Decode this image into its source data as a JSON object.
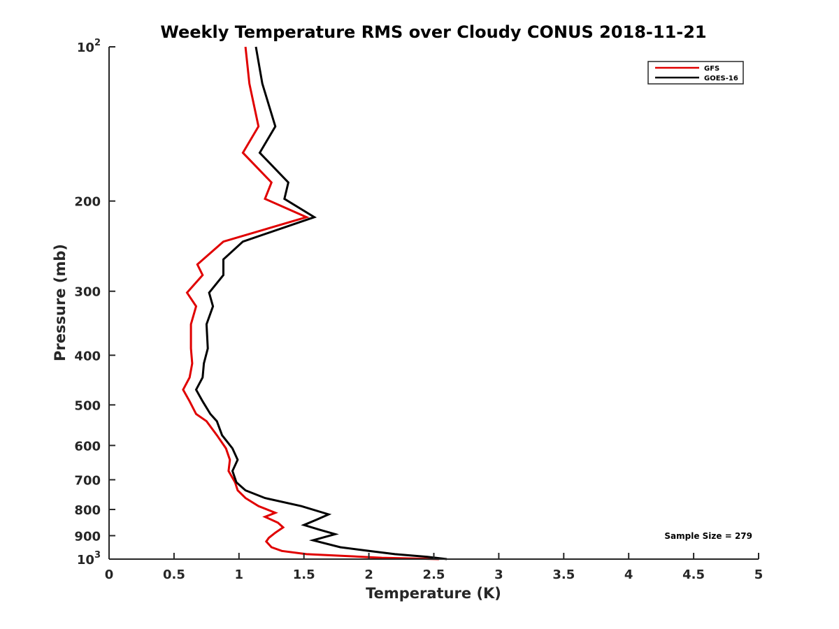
{
  "chart_data": {
    "type": "line",
    "title": "Weekly Temperature RMS over Cloudy CONUS 2018-11-21",
    "xlabel": "Temperature (K)",
    "ylabel": "Pressure (mb)",
    "xlim": [
      0,
      5
    ],
    "ylim": [
      1000,
      100
    ],
    "y_scale": "log",
    "y_reversed": true,
    "x_ticks": [
      "0",
      "0.5",
      "1",
      "1.5",
      "2",
      "2.5",
      "3",
      "3.5",
      "4",
      "4.5",
      "5"
    ],
    "y_ticks": [
      {
        "value": 100,
        "base": "10",
        "exp": "2"
      },
      {
        "value": 200,
        "label": "200"
      },
      {
        "value": 300,
        "label": "300"
      },
      {
        "value": 400,
        "label": "400"
      },
      {
        "value": 500,
        "label": "500"
      },
      {
        "value": 600,
        "label": "600"
      },
      {
        "value": 700,
        "label": "700"
      },
      {
        "value": 800,
        "label": "800"
      },
      {
        "value": 900,
        "label": "900"
      },
      {
        "value": 1000,
        "base": "10",
        "exp": "3"
      }
    ],
    "grid": false,
    "legend_position": "top-right",
    "annotation": "Sample Size = 279",
    "series": [
      {
        "name": "GFS",
        "color": "#e00000",
        "points": [
          [
            1.05,
            100
          ],
          [
            1.08,
            118
          ],
          [
            1.15,
            143
          ],
          [
            1.03,
            161
          ],
          [
            1.25,
            184
          ],
          [
            1.2,
            198
          ],
          [
            1.52,
            215
          ],
          [
            0.88,
            240
          ],
          [
            0.68,
            266
          ],
          [
            0.72,
            279
          ],
          [
            0.6,
            302
          ],
          [
            0.67,
            321
          ],
          [
            0.63,
            348
          ],
          [
            0.63,
            388
          ],
          [
            0.64,
            415
          ],
          [
            0.62,
            442
          ],
          [
            0.57,
            467
          ],
          [
            0.62,
            492
          ],
          [
            0.67,
            521
          ],
          [
            0.75,
            538
          ],
          [
            0.83,
            573
          ],
          [
            0.9,
            608
          ],
          [
            0.93,
            640
          ],
          [
            0.92,
            673
          ],
          [
            0.97,
            708
          ],
          [
            0.99,
            734
          ],
          [
            1.05,
            760
          ],
          [
            1.15,
            788
          ],
          [
            1.28,
            812
          ],
          [
            1.2,
            827
          ],
          [
            1.3,
            849
          ],
          [
            1.34,
            867
          ],
          [
            1.28,
            888
          ],
          [
            1.23,
            909
          ],
          [
            1.21,
            924
          ],
          [
            1.25,
            948
          ],
          [
            1.33,
            964
          ],
          [
            1.52,
            978
          ],
          [
            2.1,
            994
          ],
          [
            2.54,
            1000
          ]
        ]
      },
      {
        "name": "GOES-16",
        "color": "#000000",
        "points": [
          [
            1.13,
            100
          ],
          [
            1.18,
            118
          ],
          [
            1.28,
            143
          ],
          [
            1.16,
            161
          ],
          [
            1.38,
            184
          ],
          [
            1.35,
            198
          ],
          [
            1.58,
            215
          ],
          [
            1.03,
            240
          ],
          [
            0.88,
            260
          ],
          [
            0.88,
            279
          ],
          [
            0.77,
            302
          ],
          [
            0.8,
            321
          ],
          [
            0.75,
            348
          ],
          [
            0.76,
            388
          ],
          [
            0.73,
            415
          ],
          [
            0.72,
            442
          ],
          [
            0.67,
            467
          ],
          [
            0.72,
            492
          ],
          [
            0.78,
            521
          ],
          [
            0.83,
            538
          ],
          [
            0.87,
            573
          ],
          [
            0.95,
            608
          ],
          [
            0.99,
            640
          ],
          [
            0.95,
            673
          ],
          [
            0.98,
            708
          ],
          [
            1.05,
            734
          ],
          [
            1.2,
            760
          ],
          [
            1.48,
            788
          ],
          [
            1.69,
            818
          ],
          [
            1.6,
            837
          ],
          [
            1.5,
            858
          ],
          [
            1.62,
            876
          ],
          [
            1.74,
            894
          ],
          [
            1.57,
            919
          ],
          [
            1.78,
            948
          ],
          [
            2.0,
            964
          ],
          [
            2.2,
            978
          ],
          [
            2.45,
            990
          ],
          [
            2.6,
            1000
          ]
        ]
      }
    ]
  }
}
